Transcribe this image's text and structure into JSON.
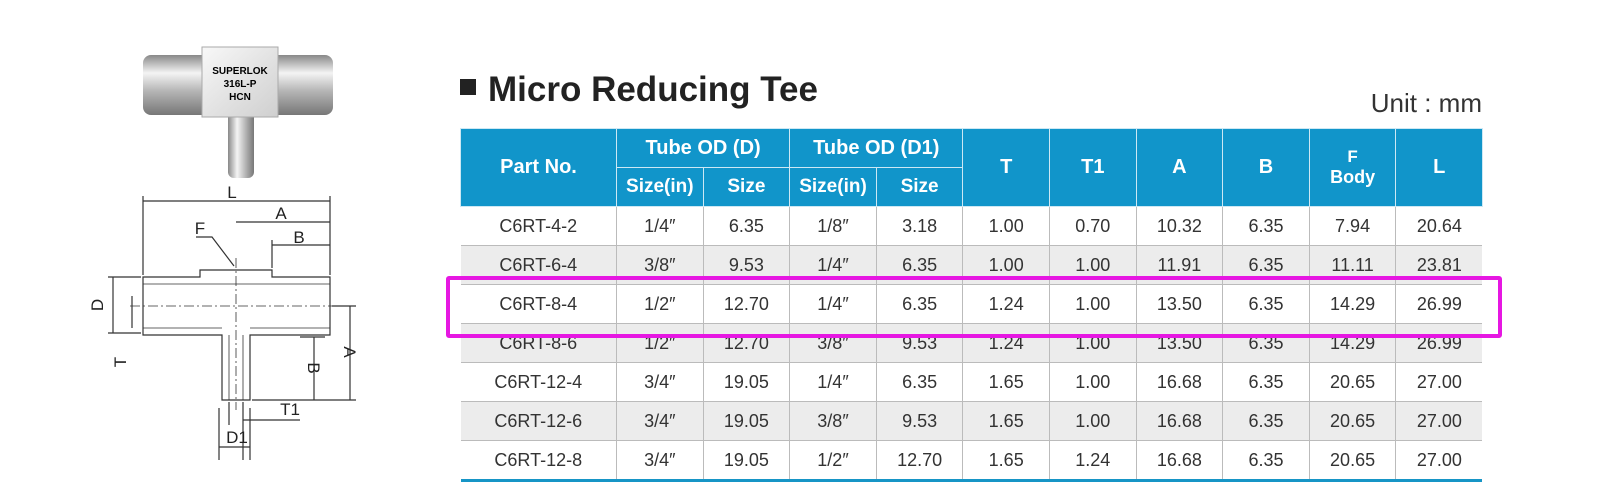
{
  "photo_labels": [
    "SUPERLOK",
    "316L-P",
    "HCN"
  ],
  "drawing_labels": [
    "L",
    "A",
    "F",
    "B",
    "D",
    "T",
    "A",
    "B",
    "T1",
    "D1"
  ],
  "title": "Micro Reducing Tee",
  "unit": "Unit : mm",
  "table": {
    "header_top": [
      "Part No.",
      "Tube OD (D)",
      "Tube OD (D1)",
      "T",
      "T1",
      "A",
      "B",
      "L"
    ],
    "header_f": [
      "F",
      "Body"
    ],
    "sub_headers": [
      "Size(in)",
      "Size",
      "Size(in)",
      "Size"
    ],
    "rows": [
      [
        "C6RT-4-2",
        "1/4″",
        "6.35",
        "1/8″",
        "3.18",
        "1.00",
        "0.70",
        "10.32",
        "6.35",
        "7.94",
        "20.64"
      ],
      [
        "C6RT-6-4",
        "3/8″",
        "9.53",
        "1/4″",
        "6.35",
        "1.00",
        "1.00",
        "11.91",
        "6.35",
        "11.11",
        "23.81"
      ],
      [
        "C6RT-8-4",
        "1/2″",
        "12.70",
        "1/4″",
        "6.35",
        "1.24",
        "1.00",
        "13.50",
        "6.35",
        "14.29",
        "26.99"
      ],
      [
        "C6RT-8-6",
        "1/2″",
        "12.70",
        "3/8″",
        "9.53",
        "1.24",
        "1.00",
        "13.50",
        "6.35",
        "14.29",
        "26.99"
      ],
      [
        "C6RT-12-4",
        "3/4″",
        "19.05",
        "1/4″",
        "6.35",
        "1.65",
        "1.00",
        "16.68",
        "6.35",
        "20.65",
        "27.00"
      ],
      [
        "C6RT-12-6",
        "3/4″",
        "19.05",
        "3/8″",
        "9.53",
        "1.65",
        "1.00",
        "16.68",
        "6.35",
        "20.65",
        "27.00"
      ],
      [
        "C6RT-12-8",
        "3/4″",
        "19.05",
        "1/2″",
        "12.70",
        "1.65",
        "1.24",
        "16.68",
        "6.35",
        "20.65",
        "27.00"
      ]
    ]
  }
}
